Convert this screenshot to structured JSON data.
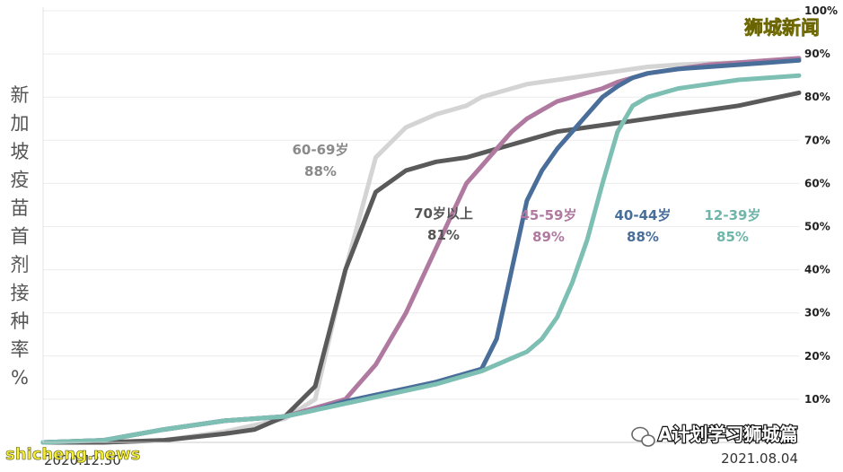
{
  "chart_data": {
    "type": "line",
    "ylabel": "新加坡疫苗首剂接种率%",
    "ylim": [
      0,
      100
    ],
    "yticks": [
      "10%",
      "20%",
      "30%",
      "40%",
      "50%",
      "60%",
      "70%",
      "80%",
      "90%",
      "100%"
    ],
    "x_start_label": "2020.12.30",
    "x_end_label": "2021.08.04",
    "x": [
      0,
      8,
      16,
      24,
      28,
      32,
      36,
      40,
      44,
      48,
      52,
      56,
      58,
      60,
      62,
      64,
      66,
      68,
      70,
      72,
      74,
      76,
      78,
      80,
      84,
      88,
      92,
      96,
      100
    ],
    "series": [
      {
        "name": "60-69岁",
        "value_label": "88%",
        "color": "#d4d4d4",
        "values": [
          0,
          0,
          0.5,
          2.5,
          4,
          5.5,
          10,
          40,
          66,
          73,
          76,
          78,
          80,
          81,
          82,
          83,
          83.5,
          84,
          84.5,
          85,
          85.5,
          86,
          86.5,
          87,
          87.5,
          87.8,
          88,
          88.2,
          88.5
        ]
      },
      {
        "name": "70岁以上",
        "value_label": "81%",
        "color": "#5a5a5a",
        "values": [
          0,
          0,
          0.5,
          2,
          3,
          6,
          13,
          40,
          58,
          63,
          65,
          66,
          67,
          68,
          69,
          70,
          71,
          72,
          72.5,
          73,
          73.5,
          74,
          74.5,
          75,
          76,
          77,
          78,
          79.5,
          81
        ]
      },
      {
        "name": "45-59岁",
        "value_label": "89%",
        "color": "#b07aa0",
        "values": [
          0,
          0.5,
          3,
          5,
          5.5,
          6,
          8,
          10,
          18,
          30,
          45,
          60,
          64,
          68,
          72,
          75,
          77,
          79,
          80,
          81,
          82,
          83.5,
          84.5,
          85.5,
          86.5,
          87.5,
          88,
          88.5,
          89
        ]
      },
      {
        "name": "40-44岁",
        "value_label": "88%",
        "color": "#4a6e9a",
        "values": [
          0,
          0.5,
          3,
          5,
          5.5,
          6,
          7.5,
          9.5,
          11,
          12.5,
          14,
          16,
          17,
          24,
          40,
          56,
          63,
          68,
          72,
          76,
          80,
          82.5,
          84.5,
          85.5,
          86.5,
          87,
          87.5,
          88,
          88.5
        ]
      },
      {
        "name": "12-39岁",
        "value_label": "85%",
        "color": "#7dbfb3",
        "values": [
          0,
          0.5,
          3,
          5,
          5.5,
          6,
          7.5,
          9,
          10.5,
          12,
          13.5,
          15.5,
          16.5,
          18,
          19.5,
          21,
          24,
          29,
          37,
          47,
          60,
          72,
          78,
          80,
          82,
          83,
          84,
          84.5,
          85
        ]
      }
    ]
  },
  "overlay": {
    "brand": "狮城新闻",
    "watermark_left": "shicheng.news",
    "watermark_right": "A计划学习狮城篇"
  }
}
